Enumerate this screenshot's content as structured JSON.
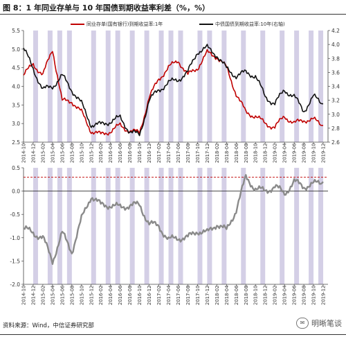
{
  "header": {
    "title": "图 8：1 年同业存单与 10 年国债到期收益率利差（%，%）"
  },
  "footer": {
    "source": "资料来源：Wind，中信证券研究部",
    "watermark": "明晰笔谈"
  },
  "colors": {
    "ncd": "#c00000",
    "bond": "#111111",
    "spread": "#8a8a8a",
    "band": "#d4cfe6",
    "dashed": "#c00000"
  },
  "chart_data": [
    {
      "type": "line",
      "series": [
        {
          "name": "同业存单(国有银行)到期收益率:1年",
          "axis": "left",
          "x": [
            "2014-10",
            "2014-12",
            "2015-02",
            "2015-04",
            "2015-06",
            "2015-08",
            "2015-10",
            "2015-12",
            "2016-02",
            "2016-04",
            "2016-06",
            "2016-08",
            "2016-10",
            "2016-12",
            "2017-02",
            "2017-04",
            "2017-06",
            "2017-08",
            "2017-10",
            "2017-12",
            "2018-02",
            "2018-04",
            "2018-06",
            "2018-08",
            "2018-10",
            "2018-12",
            "2019-02",
            "2019-04",
            "2019-06",
            "2019-08",
            "2019-10",
            "2019-12"
          ],
          "values": [
            4.3,
            4.6,
            4.3,
            5.0,
            3.6,
            3.6,
            3.3,
            2.8,
            2.7,
            2.8,
            2.95,
            2.8,
            2.75,
            3.7,
            4.2,
            4.5,
            4.7,
            4.3,
            4.5,
            4.9,
            4.8,
            4.5,
            3.8,
            3.3,
            3.2,
            3.0,
            2.9,
            3.2,
            3.0,
            3.1,
            3.1,
            2.95
          ]
        },
        {
          "name": "中债国债到期收益率:10年(右轴)",
          "axis": "right",
          "x": [
            "2014-10",
            "2014-12",
            "2015-02",
            "2015-04",
            "2015-06",
            "2015-08",
            "2015-10",
            "2015-12",
            "2016-02",
            "2016-04",
            "2016-06",
            "2016-08",
            "2016-10",
            "2016-12",
            "2017-02",
            "2017-04",
            "2017-06",
            "2017-08",
            "2017-10",
            "2017-12",
            "2018-02",
            "2018-04",
            "2018-06",
            "2018-08",
            "2018-10",
            "2018-12",
            "2019-02",
            "2019-04",
            "2019-06",
            "2019-08",
            "2019-10",
            "2019-12"
          ],
          "values": [
            3.95,
            3.65,
            3.35,
            3.4,
            3.55,
            3.35,
            3.15,
            2.85,
            2.85,
            2.9,
            2.95,
            2.75,
            2.7,
            3.2,
            3.35,
            3.45,
            3.5,
            3.6,
            3.9,
            3.95,
            3.85,
            3.65,
            3.55,
            3.6,
            3.55,
            3.25,
            3.15,
            3.35,
            3.25,
            3.05,
            3.25,
            3.15
          ]
        }
      ],
      "left_ylim": [
        2.5,
        5.5
      ],
      "left_ticks": [
        "2.5",
        "3.0",
        "3.5",
        "4.0",
        "4.5",
        "5.0",
        "5.5"
      ],
      "right_ylim": [
        2.6,
        4.2
      ],
      "right_ticks": [
        "2.6",
        "2.8",
        "3.0",
        "3.2",
        "3.4",
        "3.6",
        "3.8",
        "4.0",
        "4.2"
      ],
      "x_ticks": [
        "2014-10",
        "2014-12",
        "2015-02",
        "2015-04",
        "2015-06",
        "2015-08",
        "2015-10",
        "2015-12",
        "2016-02",
        "2016-04",
        "2016-06",
        "2016-08",
        "2016-10",
        "2016-12",
        "2017-02",
        "2017-04",
        "2017-06",
        "2017-08",
        "2017-10",
        "2017-12",
        "2018-02",
        "2018-04",
        "2018-06",
        "2018-08",
        "2018-10",
        "2018-12",
        "2019-02",
        "2019-04",
        "2019-06",
        "2019-08",
        "2019-10",
        "2019-12"
      ],
      "shaded_periods": [
        [
          "2014-12",
          "2015-01"
        ],
        [
          "2015-03",
          "2015-04"
        ],
        [
          "2015-05",
          "2015-06"
        ],
        [
          "2015-07",
          "2015-08"
        ],
        [
          "2015-12",
          "2016-01"
        ],
        [
          "2016-03",
          "2016-04"
        ],
        [
          "2016-05",
          "2016-06"
        ],
        [
          "2016-08",
          "2016-09"
        ],
        [
          "2016-11",
          "2016-12"
        ],
        [
          "2017-02",
          "2017-03"
        ],
        [
          "2017-04",
          "2017-05"
        ],
        [
          "2017-06",
          "2017-07"
        ],
        [
          "2017-10",
          "2017-11"
        ],
        [
          "2017-12",
          "2018-01"
        ],
        [
          "2018-03",
          "2018-04"
        ],
        [
          "2018-07",
          "2018-08"
        ],
        [
          "2018-11",
          "2018-12"
        ],
        [
          "2019-03",
          "2019-04"
        ],
        [
          "2019-06",
          "2019-07"
        ],
        [
          "2019-09",
          "2019-10"
        ],
        [
          "2019-11",
          "2019-12"
        ]
      ]
    },
    {
      "type": "line",
      "series": [
        {
          "name": "利差",
          "x": [
            "2014-10",
            "2014-12",
            "2015-02",
            "2015-04",
            "2015-06",
            "2015-08",
            "2015-10",
            "2015-12",
            "2016-02",
            "2016-04",
            "2016-06",
            "2016-08",
            "2016-10",
            "2016-12",
            "2017-02",
            "2017-04",
            "2017-06",
            "2017-08",
            "2017-10",
            "2017-12",
            "2018-02",
            "2018-04",
            "2018-06",
            "2018-08",
            "2018-10",
            "2018-12",
            "2019-02",
            "2019-04",
            "2019-06",
            "2019-08",
            "2019-10",
            "2019-12"
          ],
          "values": [
            -0.8,
            -0.9,
            -1.0,
            -1.5,
            -0.9,
            -1.3,
            -0.6,
            -0.1,
            -0.3,
            -0.3,
            -0.35,
            -0.3,
            -0.3,
            -0.7,
            -0.75,
            -1.05,
            -1.0,
            -1.0,
            -0.85,
            -0.9,
            -0.7,
            -0.85,
            -0.4,
            0.3,
            0.05,
            0.0,
            0.1,
            -0.05,
            0.2,
            0.1,
            0.15,
            0.2
          ]
        }
      ],
      "ylim": [
        -2.0,
        0.5
      ],
      "y_ticks": [
        "-2.0",
        "-1.5",
        "-1.0",
        "-0.5",
        "0.0",
        "0.5"
      ],
      "reference_line": 0.3,
      "x_ticks": [
        "2014-10",
        "2014-12",
        "2015-02",
        "2015-04",
        "2015-06",
        "2015-08",
        "2015-10",
        "2015-12",
        "2016-02",
        "2016-04",
        "2016-06",
        "2016-08",
        "2016-10",
        "2016-12",
        "2017-02",
        "2017-04",
        "2017-06",
        "2017-08",
        "2017-10",
        "2017-12",
        "2018-02",
        "2018-04",
        "2018-06",
        "2018-08",
        "2018-10",
        "2018-12",
        "2019-02",
        "2019-04",
        "2019-06",
        "2019-08",
        "2019-10",
        "2019-12"
      ]
    }
  ]
}
